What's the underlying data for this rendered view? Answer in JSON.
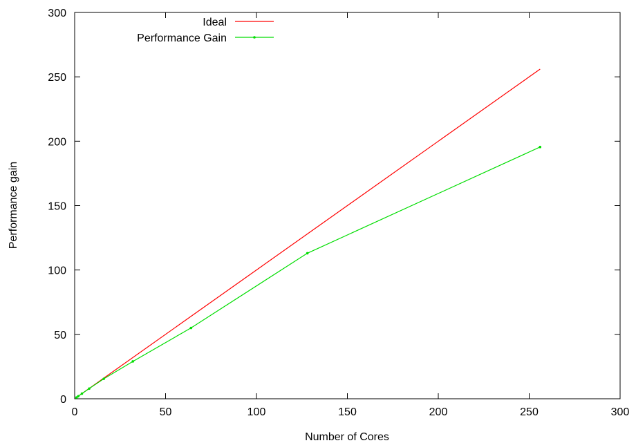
{
  "chart_data": {
    "type": "line",
    "title": "",
    "xlabel": "Number of Cores",
    "ylabel": "Performance gain",
    "xlim": [
      0,
      300
    ],
    "ylim": [
      0,
      300
    ],
    "xticks": [
      0,
      50,
      100,
      150,
      200,
      250,
      300
    ],
    "yticks": [
      0,
      50,
      100,
      150,
      200,
      250,
      300
    ],
    "grid": false,
    "legend_position": "top-left",
    "series": [
      {
        "name": "Ideal",
        "color": "#ff0000",
        "marker": false,
        "x": [
          1,
          256
        ],
        "y": [
          1,
          256
        ]
      },
      {
        "name": "Performance Gain",
        "color": "#00dd00",
        "marker": true,
        "x": [
          1,
          2,
          4,
          8,
          16,
          32,
          64,
          128,
          256
        ],
        "y": [
          1,
          2,
          4,
          7.9,
          15.5,
          29,
          55,
          113,
          195.5
        ]
      }
    ]
  }
}
